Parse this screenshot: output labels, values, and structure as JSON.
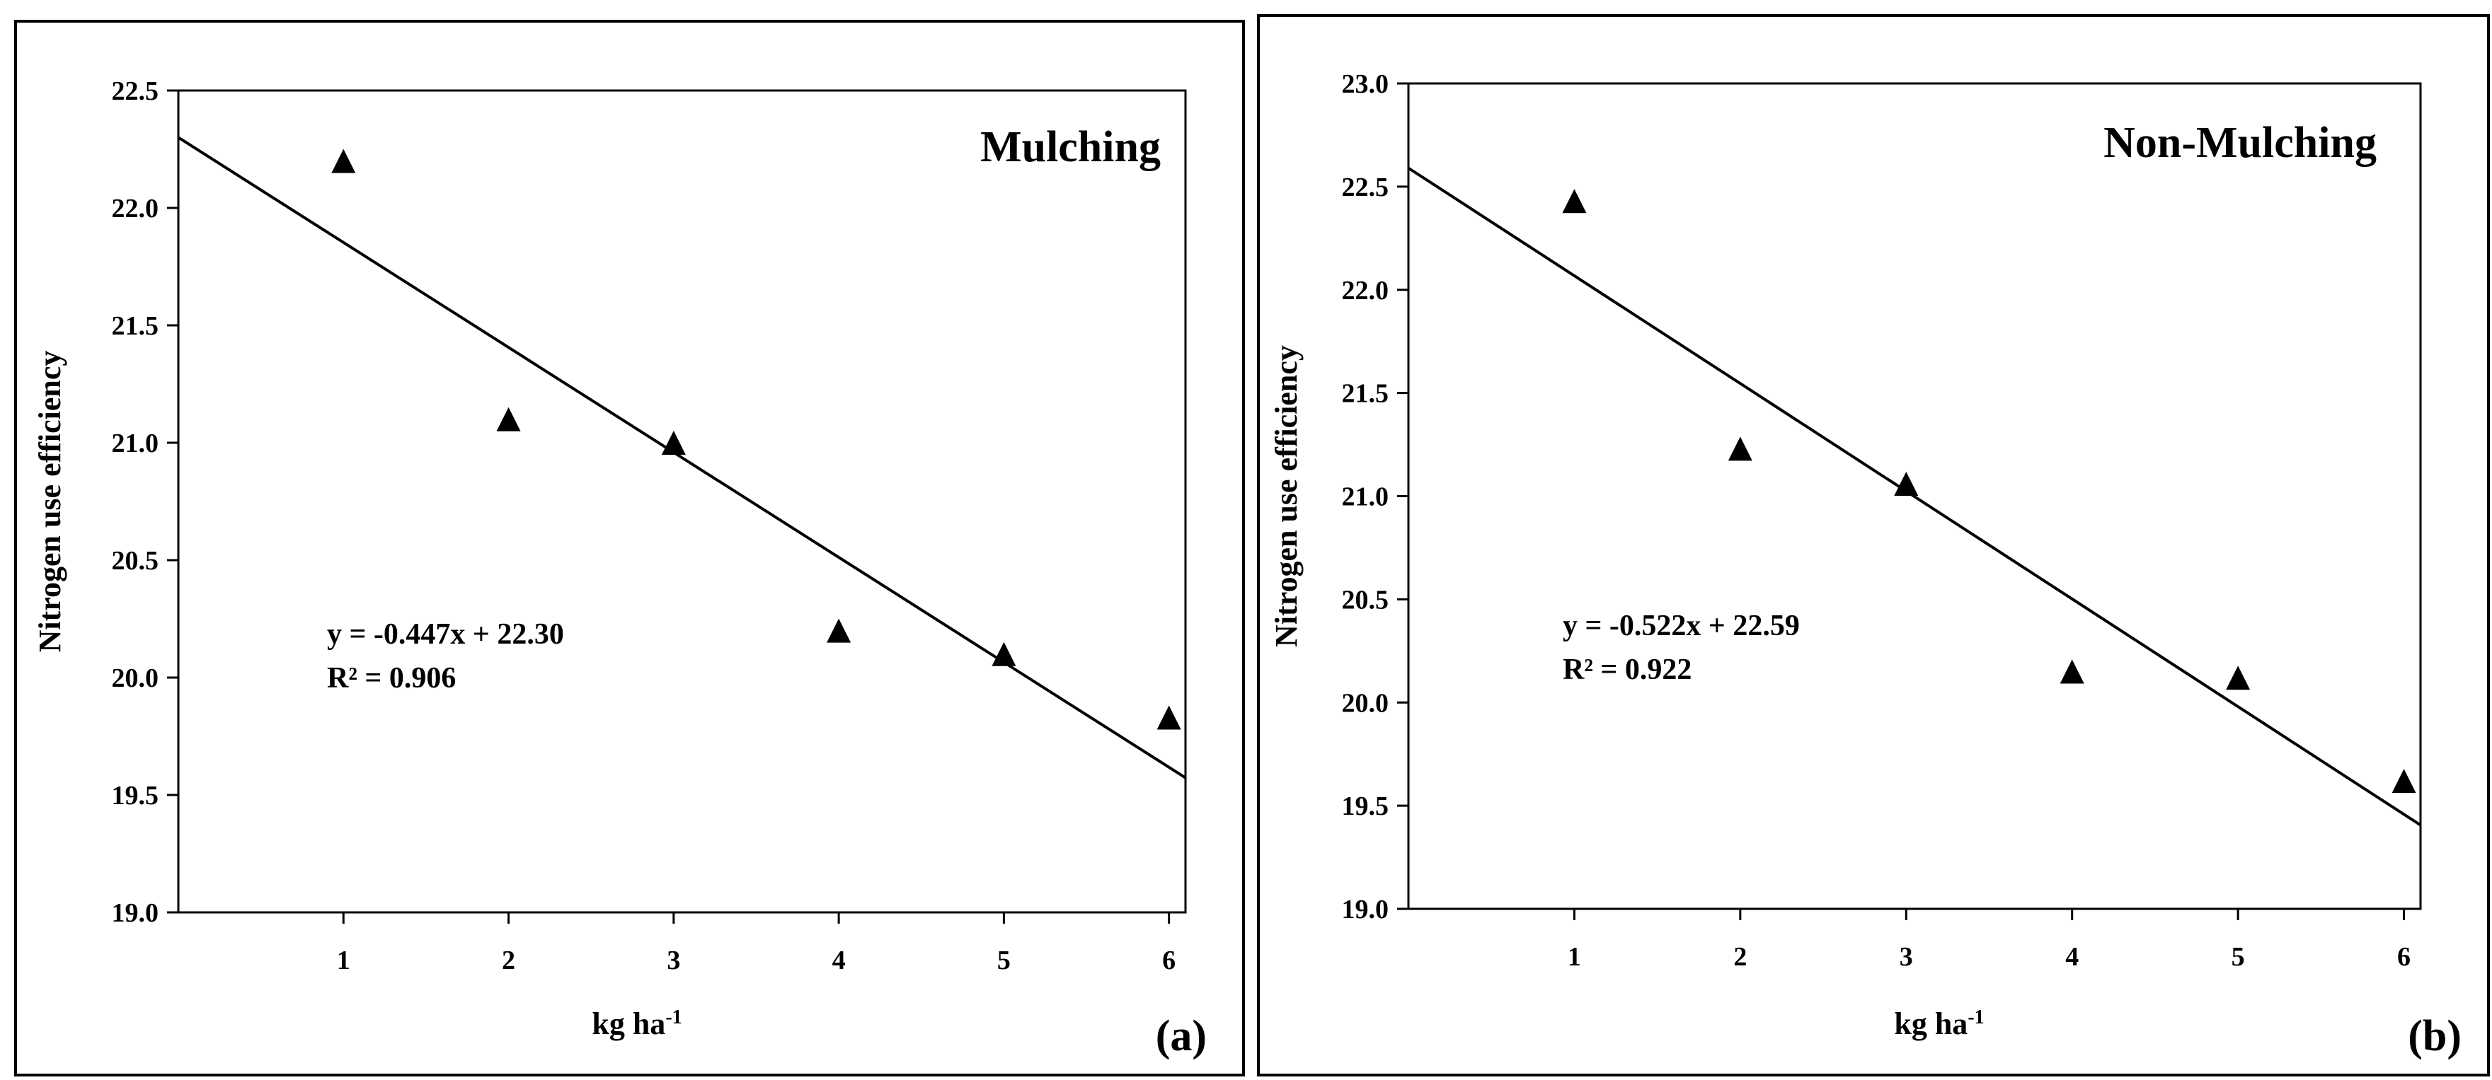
{
  "chart_data": [
    {
      "type": "scatter",
      "title": "Mulching",
      "panel_label": "(a)",
      "xlabel": "kg ha",
      "xlabel_sup": "-1",
      "ylabel": "Nitrogen use efficiency",
      "xlim": [
        0,
        6.1
      ],
      "ylim": [
        19.0,
        22.5
      ],
      "xticks": [
        1,
        2,
        3,
        4,
        5,
        6
      ],
      "yticks": [
        "19.0",
        "19.5",
        "20.0",
        "20.5",
        "21.0",
        "21.5",
        "22.0",
        "22.5"
      ],
      "marker": "triangle",
      "points": [
        {
          "x": 1,
          "y": 22.2
        },
        {
          "x": 2,
          "y": 21.1
        },
        {
          "x": 3,
          "y": 21.0
        },
        {
          "x": 4,
          "y": 20.2
        },
        {
          "x": 5,
          "y": 20.1
        },
        {
          "x": 6,
          "y": 19.83
        }
      ],
      "trendline": {
        "slope": -0.447,
        "intercept": 22.3
      },
      "equation": "y = -0.447x + 22.30",
      "r_squared": "R² = 0.906"
    },
    {
      "type": "scatter",
      "title": "Non-Mulching",
      "panel_label": "(b)",
      "xlabel": "kg ha",
      "xlabel_sup": "-1",
      "ylabel": "Nitrogen use efficiency",
      "xlim": [
        0,
        6.1
      ],
      "ylim": [
        19.0,
        23.0
      ],
      "xticks": [
        1,
        2,
        3,
        4,
        5,
        6
      ],
      "yticks": [
        "19.0",
        "19.5",
        "20.0",
        "20.5",
        "21.0",
        "21.5",
        "22.0",
        "22.5",
        "23.0"
      ],
      "marker": "triangle",
      "points": [
        {
          "x": 1,
          "y": 22.43
        },
        {
          "x": 2,
          "y": 21.23
        },
        {
          "x": 3,
          "y": 21.06
        },
        {
          "x": 4,
          "y": 20.15
        },
        {
          "x": 5,
          "y": 20.12
        },
        {
          "x": 6,
          "y": 19.62
        }
      ],
      "trendline": {
        "slope": -0.522,
        "intercept": 22.59
      },
      "equation": "y = -0.522x + 22.59",
      "r_squared": "R² = 0.922"
    }
  ]
}
